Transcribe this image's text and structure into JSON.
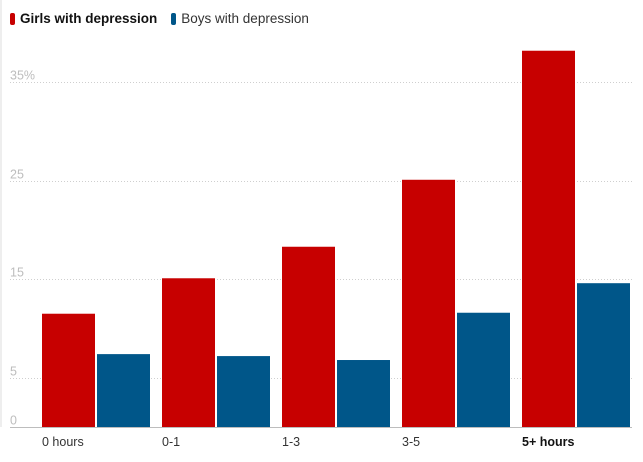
{
  "chart_data": {
    "type": "bar",
    "categories": [
      "0 hours",
      "0-1",
      "1-3",
      "3-5",
      "5+ hours"
    ],
    "emphasized_categories": [
      "5+ hours"
    ],
    "series": [
      {
        "name": "Girls with depression",
        "color": "#c70000",
        "values": [
          11.5,
          15.1,
          18.3,
          25.1,
          38.2
        ]
      },
      {
        "name": "Boys with depression",
        "color": "#005689",
        "values": [
          7.4,
          7.2,
          6.8,
          11.6,
          14.6
        ]
      }
    ],
    "yticks": [
      {
        "value": 0,
        "label": "0"
      },
      {
        "value": 5,
        "label": "5"
      },
      {
        "value": 15,
        "label": "15"
      },
      {
        "value": 25,
        "label": "25"
      },
      {
        "value": 35,
        "label": "35%"
      }
    ],
    "ylim": [
      0,
      40
    ],
    "title": "",
    "xlabel": "",
    "ylabel": "",
    "grid": true,
    "legend_position": "top-left"
  }
}
